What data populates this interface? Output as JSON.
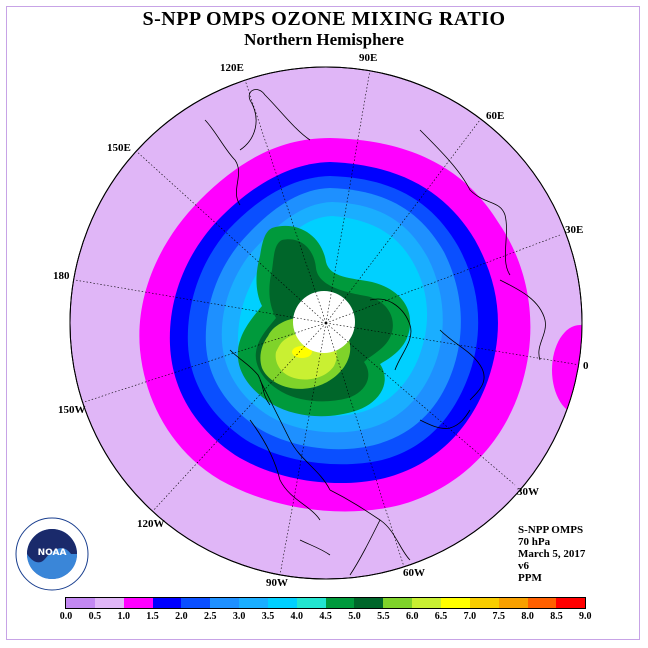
{
  "title": "S-NPP OMPS OZONE MIXING RATIO",
  "subtitle": "Northern Hemisphere",
  "longitudes": {
    "lon_90e": "90E",
    "lon_60e": "60E",
    "lon_30e": "30E",
    "lon_0": "0",
    "lon_30w": "30W",
    "lon_60w": "60W",
    "lon_90w": "90W",
    "lon_120w": "120W",
    "lon_150w": "150W",
    "lon_180": "180",
    "lon_150e": "150E",
    "lon_120e": "120E"
  },
  "info": {
    "instrument": "S-NPP OMPS",
    "level": "70 hPa",
    "date": "March 5, 2017",
    "version": "v6",
    "units": "PPM"
  },
  "colorbar": {
    "ticks": [
      "0.0",
      "0.5",
      "1.0",
      "1.5",
      "2.0",
      "2.5",
      "3.0",
      "3.5",
      "4.0",
      "4.5",
      "5.0",
      "5.5",
      "6.0",
      "6.5",
      "7.0",
      "7.5",
      "8.0",
      "8.5",
      "9.0"
    ],
    "colors": [
      "#c388f2",
      "#e0b6f7",
      "#ff00ff",
      "#0000ff",
      "#0a4fff",
      "#1e90ff",
      "#1aaeff",
      "#00d0ff",
      "#22e5d0",
      "#009a3c",
      "#00662a",
      "#7fd32a",
      "#c9f032",
      "#ffff00",
      "#f8cd00",
      "#f8a000",
      "#ff6000",
      "#ff0000",
      "#8b5a3c"
    ]
  },
  "logo": {
    "text": "NOAA"
  }
}
